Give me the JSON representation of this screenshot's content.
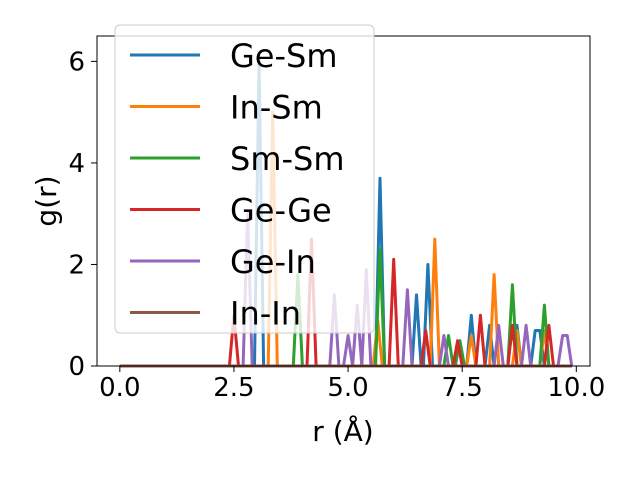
{
  "chart_data": {
    "type": "line",
    "xlabel": "r (Å)",
    "ylabel": "g(r)",
    "xlim": [
      -0.5,
      10.3
    ],
    "ylim": [
      0,
      6.5
    ],
    "xticks": [
      0.0,
      2.5,
      5.0,
      7.5,
      10.0
    ],
    "xtick_labels": [
      "0.0",
      "2.5",
      "5.0",
      "7.5",
      "10.0"
    ],
    "yticks": [
      0,
      2,
      4,
      6
    ],
    "ytick_labels": [
      "0",
      "2",
      "4",
      "6"
    ],
    "grid": false,
    "legend_placement": "upper-left",
    "series": [
      {
        "name": "Ge-Sm",
        "color": "#1f77b4",
        "points": [
          [
            0,
            0
          ],
          [
            2.95,
            0
          ],
          [
            3.05,
            6.0
          ],
          [
            3.15,
            0
          ],
          [
            5.6,
            0
          ],
          [
            5.7,
            3.7
          ],
          [
            5.8,
            0
          ],
          [
            6.4,
            0
          ],
          [
            6.5,
            1.4
          ],
          [
            6.6,
            0
          ],
          [
            6.65,
            0
          ],
          [
            6.75,
            2.0
          ],
          [
            6.85,
            0
          ],
          [
            7.6,
            0
          ],
          [
            7.7,
            1.0
          ],
          [
            7.8,
            0
          ],
          [
            8.0,
            0
          ],
          [
            8.1,
            0.8
          ],
          [
            8.2,
            0
          ],
          [
            8.5,
            0
          ],
          [
            8.6,
            0.8
          ],
          [
            8.7,
            0.8
          ],
          [
            8.8,
            0
          ],
          [
            9.0,
            0
          ],
          [
            9.1,
            0.7
          ],
          [
            9.2,
            0.7
          ],
          [
            9.3,
            0
          ],
          [
            9.9,
            0
          ]
        ]
      },
      {
        "name": "In-Sm",
        "color": "#ff7f0e",
        "points": [
          [
            0,
            0
          ],
          [
            3.25,
            0
          ],
          [
            3.35,
            5.0
          ],
          [
            3.45,
            0
          ],
          [
            5.55,
            0
          ],
          [
            5.65,
            0.9
          ],
          [
            5.75,
            0
          ],
          [
            6.8,
            0
          ],
          [
            6.9,
            2.5
          ],
          [
            7.0,
            0
          ],
          [
            7.6,
            0
          ],
          [
            7.7,
            0.6
          ],
          [
            7.8,
            0
          ],
          [
            8.1,
            0
          ],
          [
            8.2,
            1.8
          ],
          [
            8.3,
            0
          ],
          [
            8.6,
            0
          ],
          [
            8.7,
            0.7
          ],
          [
            8.8,
            0
          ],
          [
            9.2,
            0
          ],
          [
            9.3,
            0.7
          ],
          [
            9.4,
            0
          ],
          [
            9.9,
            0
          ]
        ]
      },
      {
        "name": "Sm-Sm",
        "color": "#2ca02c",
        "points": [
          [
            0,
            0
          ],
          [
            3.8,
            0
          ],
          [
            3.9,
            1.8
          ],
          [
            4.0,
            0
          ],
          [
            5.6,
            0
          ],
          [
            5.7,
            2.3
          ],
          [
            5.8,
            0
          ],
          [
            7.1,
            0
          ],
          [
            7.2,
            0.6
          ],
          [
            7.3,
            0
          ],
          [
            7.35,
            0
          ],
          [
            7.45,
            0.5
          ],
          [
            7.55,
            0
          ],
          [
            8.5,
            0
          ],
          [
            8.6,
            1.6
          ],
          [
            8.7,
            0
          ],
          [
            9.2,
            0
          ],
          [
            9.3,
            1.2
          ],
          [
            9.4,
            0
          ],
          [
            9.9,
            0
          ]
        ]
      },
      {
        "name": "Ge-Ge",
        "color": "#d62728",
        "points": [
          [
            0,
            0
          ],
          [
            2.4,
            0
          ],
          [
            2.5,
            1.0
          ],
          [
            2.6,
            0
          ],
          [
            4.1,
            0
          ],
          [
            4.2,
            2.5
          ],
          [
            4.3,
            0
          ],
          [
            5.9,
            0
          ],
          [
            6.0,
            2.1
          ],
          [
            6.1,
            0
          ],
          [
            6.6,
            0
          ],
          [
            6.7,
            0.7
          ],
          [
            6.8,
            0
          ],
          [
            7.3,
            0
          ],
          [
            7.4,
            0.5
          ],
          [
            7.5,
            0
          ],
          [
            7.8,
            0
          ],
          [
            7.9,
            1.0
          ],
          [
            8.0,
            0
          ],
          [
            8.5,
            0
          ],
          [
            8.6,
            0.8
          ],
          [
            8.7,
            0
          ],
          [
            9.3,
            0
          ],
          [
            9.4,
            0.8
          ],
          [
            9.5,
            0
          ],
          [
            9.9,
            0
          ]
        ]
      },
      {
        "name": "Ge-In",
        "color": "#9467bd",
        "points": [
          [
            0,
            0
          ],
          [
            2.7,
            0
          ],
          [
            2.8,
            3.0
          ],
          [
            2.9,
            0
          ],
          [
            4.6,
            0
          ],
          [
            4.7,
            1.4
          ],
          [
            4.8,
            0
          ],
          [
            4.9,
            0
          ],
          [
            5.0,
            0.6
          ],
          [
            5.1,
            0
          ],
          [
            5.2,
            1.2
          ],
          [
            5.3,
            0
          ],
          [
            5.4,
            1.9
          ],
          [
            5.5,
            0
          ],
          [
            6.2,
            0
          ],
          [
            6.3,
            1.5
          ],
          [
            6.4,
            0
          ],
          [
            7.0,
            0
          ],
          [
            7.1,
            0.6
          ],
          [
            7.2,
            0
          ],
          [
            8.2,
            0
          ],
          [
            8.3,
            0.8
          ],
          [
            8.4,
            0
          ],
          [
            8.8,
            0
          ],
          [
            8.9,
            0.8
          ],
          [
            9.0,
            0
          ],
          [
            9.6,
            0
          ],
          [
            9.7,
            0.6
          ],
          [
            9.8,
            0.6
          ],
          [
            9.9,
            0
          ]
        ]
      },
      {
        "name": "In-In",
        "color": "#8c564b",
        "points": [
          [
            0,
            0
          ],
          [
            9.9,
            0
          ]
        ]
      }
    ]
  }
}
